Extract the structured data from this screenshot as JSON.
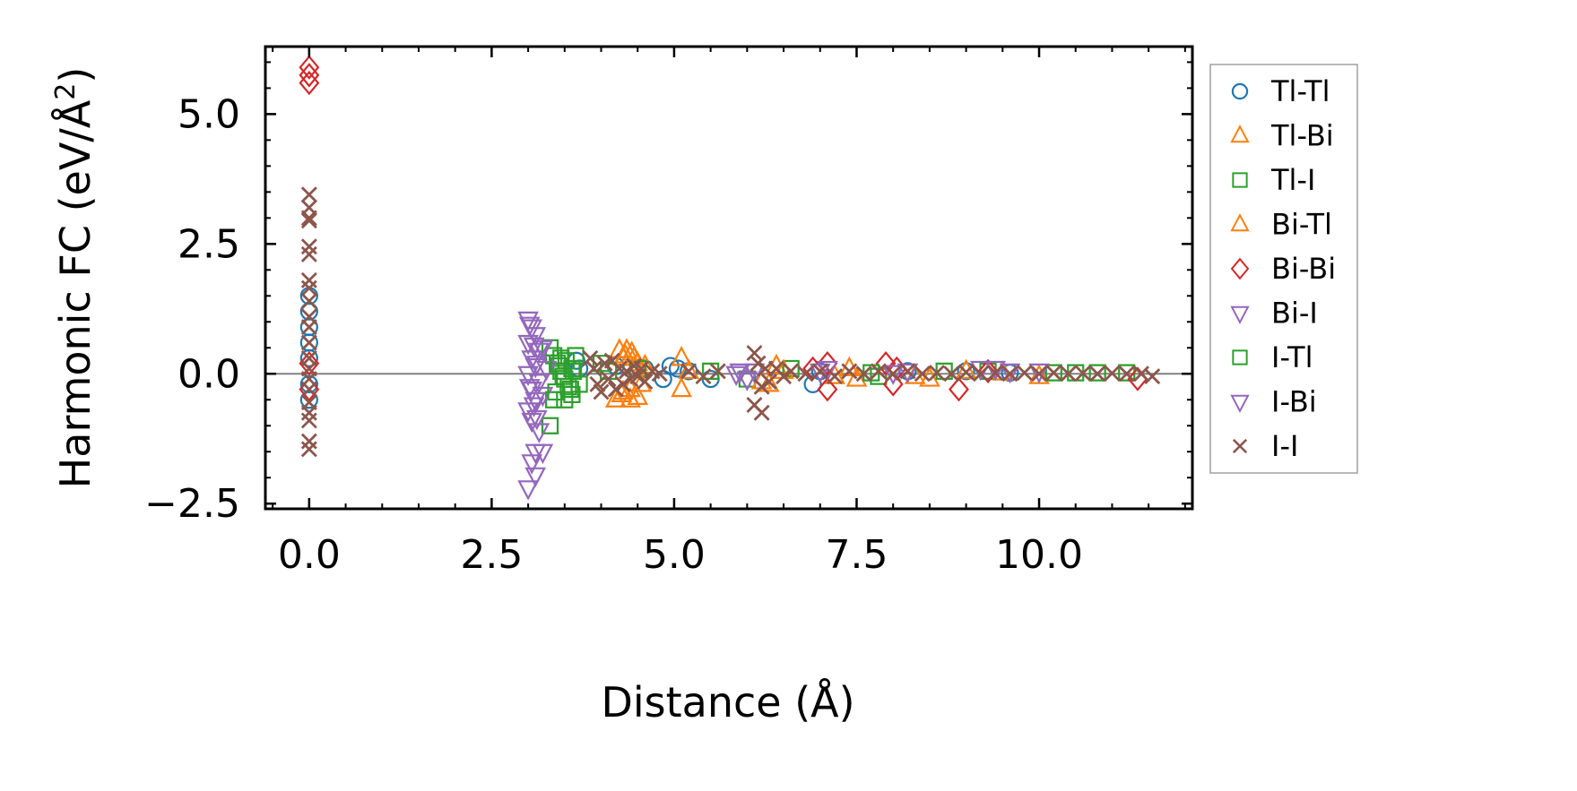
{
  "chart_data": {
    "type": "scatter",
    "xlabel": "Distance (Å)",
    "ylabel_main": "Harmonic FC (eV/Å",
    "ylabel_sup": "2",
    "ylabel_close": ")",
    "xlim": [
      -0.6,
      12.1
    ],
    "ylim": [
      -2.6,
      6.3
    ],
    "xticks": [
      0.0,
      2.5,
      5.0,
      7.5,
      10.0
    ],
    "xtick_labels": [
      "0.0",
      "2.5",
      "5.0",
      "7.5",
      "10.0"
    ],
    "yticks": [
      -2.5,
      0.0,
      2.5,
      5.0
    ],
    "ytick_labels": [
      "−2.5",
      "0.0",
      "2.5",
      "5.0"
    ],
    "x_minor_step": 0.5,
    "y_minor_step": 0.5,
    "zero_line": 0,
    "legend_position": "outside-right",
    "series": [
      {
        "name": "Tl-Tl",
        "marker": "circle",
        "color": "#1f77b4",
        "points": [
          [
            0,
            1.5
          ],
          [
            0,
            1.2
          ],
          [
            0,
            0.9
          ],
          [
            0,
            0.6
          ],
          [
            0,
            0.3
          ],
          [
            0,
            -0.2
          ],
          [
            0,
            -0.5
          ],
          [
            3.66,
            0.25
          ],
          [
            3.7,
            0.1
          ],
          [
            4.2,
            0.15
          ],
          [
            4.6,
            0.1
          ],
          [
            4.85,
            -0.1
          ],
          [
            4.95,
            0.15
          ],
          [
            5.05,
            0.1
          ],
          [
            5.2,
            0.05
          ],
          [
            5.5,
            -0.1
          ],
          [
            6.9,
            -0.2
          ],
          [
            7.0,
            0.05
          ],
          [
            8.2,
            0.05
          ],
          [
            9.0,
            0.05
          ],
          [
            9.6,
            0.02
          ]
        ]
      },
      {
        "name": "Tl-Bi",
        "marker": "triangle-up",
        "color": "#ff7f0e",
        "points": [
          [
            4.25,
            0.45
          ],
          [
            4.3,
            0.3
          ],
          [
            4.35,
            0.45
          ],
          [
            4.3,
            -0.35
          ],
          [
            4.4,
            -0.5
          ],
          [
            4.45,
            0.3
          ],
          [
            4.2,
            -0.5
          ],
          [
            4.5,
            -0.45
          ],
          [
            4.5,
            0.2
          ],
          [
            4.6,
            0.15
          ],
          [
            5.1,
            0.3
          ],
          [
            5.1,
            -0.3
          ],
          [
            5.2,
            0.05
          ],
          [
            6.3,
            -0.2
          ],
          [
            6.4,
            0.15
          ],
          [
            7.4,
            0.1
          ],
          [
            7.5,
            -0.1
          ],
          [
            8.5,
            -0.1
          ],
          [
            9.0,
            0.05
          ],
          [
            10.0,
            -0.05
          ]
        ]
      },
      {
        "name": "Tl-I",
        "marker": "square",
        "color": "#2ca02c",
        "points": [
          [
            3.3,
            0.5
          ],
          [
            3.35,
            0.35
          ],
          [
            3.4,
            0.2
          ],
          [
            3.45,
            0.05
          ],
          [
            3.5,
            -0.1
          ],
          [
            3.55,
            -0.25
          ],
          [
            3.6,
            -0.4
          ],
          [
            3.35,
            -0.5
          ],
          [
            3.3,
            -1.0
          ],
          [
            3.45,
            0.3
          ],
          [
            3.5,
            -0.5
          ],
          [
            3.65,
            0.35
          ],
          [
            3.6,
            0.1
          ],
          [
            3.7,
            -0.2
          ],
          [
            4.0,
            0.2
          ],
          [
            4.5,
            0.1
          ],
          [
            5.5,
            0.05
          ],
          [
            6.0,
            -0.1
          ],
          [
            6.6,
            0.1
          ],
          [
            7.8,
            -0.05
          ],
          [
            8.7,
            0.05
          ],
          [
            9.3,
            0.05
          ],
          [
            10.2,
            0.02
          ],
          [
            10.8,
            0.02
          ],
          [
            11.2,
            0.02
          ]
        ]
      },
      {
        "name": "Bi-Tl",
        "marker": "triangle-up",
        "color": "#ff7f0e",
        "points": [
          [
            4.28,
            -0.4
          ],
          [
            4.33,
            0.35
          ],
          [
            4.4,
            -0.3
          ],
          [
            4.42,
            0.4
          ],
          [
            4.55,
            -0.2
          ],
          [
            6.2,
            -0.15
          ],
          [
            6.5,
            0.05
          ],
          [
            7.2,
            -0.05
          ],
          [
            8.3,
            -0.05
          ],
          [
            9.5,
            0.02
          ]
        ]
      },
      {
        "name": "Bi-Bi",
        "marker": "diamond",
        "color": "#d62728",
        "points": [
          [
            0,
            5.9
          ],
          [
            0,
            5.75
          ],
          [
            0,
            5.6
          ],
          [
            0,
            0.2
          ],
          [
            0,
            -0.3
          ],
          [
            6.9,
            0.1
          ],
          [
            7.1,
            0.2
          ],
          [
            7.1,
            -0.3
          ],
          [
            7.9,
            0.2
          ],
          [
            8.0,
            -0.2
          ],
          [
            8.05,
            0.1
          ],
          [
            8.9,
            -0.3
          ],
          [
            9.3,
            0.05
          ],
          [
            11.35,
            -0.1
          ]
        ]
      },
      {
        "name": "Bi-I",
        "marker": "triangle-down",
        "color": "#9467bd",
        "points": [
          [
            3.0,
            1.05
          ],
          [
            3.05,
            0.9
          ],
          [
            3.1,
            0.75
          ],
          [
            3.0,
            0.6
          ],
          [
            3.15,
            0.45
          ],
          [
            3.05,
            0.3
          ],
          [
            3.1,
            0.15
          ],
          [
            3.0,
            0.0
          ],
          [
            3.15,
            -0.15
          ],
          [
            3.05,
            -0.3
          ],
          [
            3.1,
            -0.5
          ],
          [
            3.0,
            -0.7
          ],
          [
            3.05,
            -0.9
          ],
          [
            3.15,
            -1.1
          ],
          [
            3.1,
            -1.5
          ],
          [
            3.05,
            -1.7
          ],
          [
            3.0,
            -2.2
          ],
          [
            3.2,
            0.5
          ],
          [
            3.25,
            0.1
          ],
          [
            3.2,
            -0.4
          ],
          [
            5.9,
            0.05
          ],
          [
            6.0,
            -0.1
          ],
          [
            7.0,
            0.05
          ],
          [
            8.0,
            0.02
          ],
          [
            9.2,
            0.1
          ],
          [
            9.4,
            0.1
          ]
        ]
      },
      {
        "name": "I-Tl",
        "marker": "square",
        "color": "#2ca02c",
        "points": [
          [
            3.38,
            -0.35
          ],
          [
            3.42,
            0.15
          ],
          [
            3.48,
            -0.05
          ],
          [
            3.52,
            0.25
          ],
          [
            3.58,
            -0.3
          ],
          [
            3.62,
            0.05
          ],
          [
            4.1,
            0.05
          ],
          [
            7.7,
            0.02
          ],
          [
            10.5,
            0.02
          ]
        ]
      },
      {
        "name": "I-Bi",
        "marker": "triangle-down",
        "color": "#9467bd",
        "points": [
          [
            3.02,
            0.95
          ],
          [
            3.08,
            0.55
          ],
          [
            3.12,
            0.2
          ],
          [
            3.02,
            -0.25
          ],
          [
            3.08,
            -0.6
          ],
          [
            3.12,
            -0.85
          ],
          [
            3.2,
            -1.5
          ],
          [
            3.1,
            -1.95
          ],
          [
            5.85,
            0.0
          ],
          [
            6.1,
            0.05
          ],
          [
            7.1,
            0.1
          ],
          [
            8.2,
            0.05
          ],
          [
            9.6,
            0.05
          ],
          [
            10.0,
            0.05
          ]
        ]
      },
      {
        "name": "I-I",
        "marker": "x",
        "color": "#8c564b",
        "points": [
          [
            0,
            3.45
          ],
          [
            0,
            3.2
          ],
          [
            0,
            3.0
          ],
          [
            0,
            2.95
          ],
          [
            0,
            2.45
          ],
          [
            0,
            2.3
          ],
          [
            0,
            1.8
          ],
          [
            0,
            1.65
          ],
          [
            0,
            1.4
          ],
          [
            0,
            1.1
          ],
          [
            0,
            0.9
          ],
          [
            0,
            0.6
          ],
          [
            0,
            0.3
          ],
          [
            0,
            0.1
          ],
          [
            0,
            -0.1
          ],
          [
            0,
            -0.3
          ],
          [
            0,
            -0.55
          ],
          [
            0,
            -0.75
          ],
          [
            0,
            -0.9
          ],
          [
            0,
            -1.3
          ],
          [
            0,
            -1.45
          ],
          [
            3.85,
            0.3
          ],
          [
            3.9,
            0.1
          ],
          [
            3.95,
            -0.2
          ],
          [
            4.0,
            -0.35
          ],
          [
            4.05,
            0.2
          ],
          [
            4.1,
            -0.1
          ],
          [
            4.15,
            0.25
          ],
          [
            4.2,
            -0.3
          ],
          [
            4.25,
            0.1
          ],
          [
            4.3,
            -0.2
          ],
          [
            4.35,
            0.05
          ],
          [
            4.4,
            -0.1
          ],
          [
            4.45,
            0.15
          ],
          [
            4.5,
            -0.05
          ],
          [
            4.55,
            0.1
          ],
          [
            4.6,
            -0.15
          ],
          [
            4.7,
            0.05
          ],
          [
            4.8,
            0.0
          ],
          [
            5.2,
            0.05
          ],
          [
            5.4,
            -0.05
          ],
          [
            5.6,
            0.05
          ],
          [
            6.1,
            0.4
          ],
          [
            6.15,
            0.2
          ],
          [
            6.2,
            -0.25
          ],
          [
            6.1,
            -0.6
          ],
          [
            6.2,
            -0.75
          ],
          [
            6.25,
            0.1
          ],
          [
            6.3,
            -0.15
          ],
          [
            6.4,
            0.1
          ],
          [
            6.5,
            -0.05
          ],
          [
            6.6,
            0.05
          ],
          [
            6.8,
            0.0
          ],
          [
            7.0,
            0.05
          ],
          [
            7.2,
            -0.05
          ],
          [
            7.4,
            0.05
          ],
          [
            7.6,
            0.0
          ],
          [
            7.8,
            0.05
          ],
          [
            8.0,
            0.0
          ],
          [
            8.2,
            0.05
          ],
          [
            8.4,
            0.0
          ],
          [
            8.6,
            0.02
          ],
          [
            8.8,
            0.0
          ],
          [
            9.0,
            0.03
          ],
          [
            9.2,
            0.0
          ],
          [
            9.4,
            0.02
          ],
          [
            9.6,
            0.0
          ],
          [
            9.8,
            0.02
          ],
          [
            10.0,
            0.0
          ],
          [
            10.2,
            0.02
          ],
          [
            10.4,
            0.0
          ],
          [
            10.6,
            0.01
          ],
          [
            10.8,
            0.0
          ],
          [
            11.0,
            0.01
          ],
          [
            11.2,
            0.0
          ],
          [
            11.4,
            0.0
          ],
          [
            11.55,
            -0.05
          ]
        ]
      }
    ]
  }
}
